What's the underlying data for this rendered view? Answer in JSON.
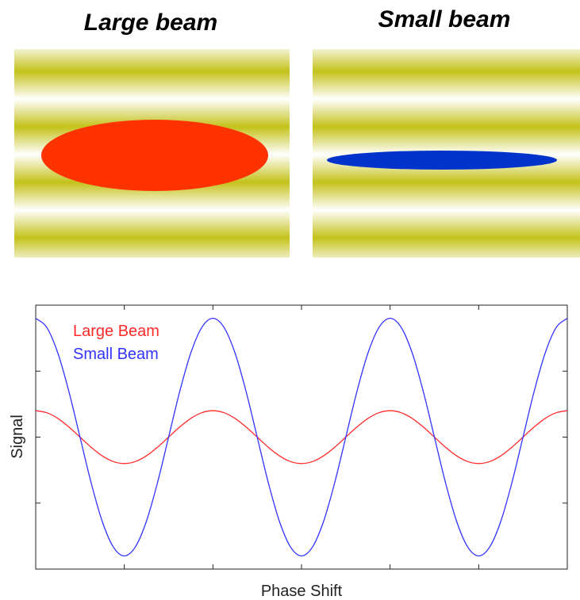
{
  "panels": [
    {
      "title": "Large beam"
    },
    {
      "title": "Small beam"
    }
  ],
  "chart_data": {
    "type": "line",
    "xlabel": "Phase Shift",
    "ylabel": "Signal",
    "x": [
      0,
      0.125,
      0.25,
      0.375,
      0.5,
      0.625,
      0.75,
      0.875,
      1,
      1.125,
      1.25,
      1.375,
      1.5,
      1.625,
      1.75,
      1.875,
      2,
      2.125,
      2.25,
      2.375,
      2.5,
      2.625,
      2.75,
      2.875,
      3,
      3.125,
      3.25,
      3.375,
      3.5,
      3.625,
      3.75,
      3.875,
      4,
      4.125,
      4.25,
      4.375,
      4.5,
      4.625,
      4.75,
      4.875,
      5,
      5.125,
      5.25,
      5.375,
      5.5,
      5.625,
      5.75,
      5.875,
      6
    ],
    "series": [
      {
        "name": "Large Beam",
        "color": "#ff2a2a",
        "values": [
          0.4,
          0.37,
          0.283,
          0.153,
          0,
          -0.153,
          -0.283,
          -0.37,
          -0.4,
          -0.37,
          -0.283,
          -0.153,
          0,
          0.153,
          0.283,
          0.37,
          0.4,
          0.37,
          0.283,
          0.153,
          0,
          -0.153,
          -0.283,
          -0.37,
          -0.4,
          -0.37,
          -0.283,
          -0.153,
          0,
          0.153,
          0.283,
          0.37,
          0.4,
          0.37,
          0.283,
          0.153,
          0,
          -0.153,
          -0.283,
          -0.37,
          -0.4,
          -0.37,
          -0.283,
          -0.153,
          0,
          0.153,
          0.283,
          0.37,
          0.4
        ]
      },
      {
        "name": "Small Beam",
        "color": "#3333ff",
        "values": [
          1.8,
          1.663,
          1.273,
          0.689,
          0,
          -0.689,
          -1.273,
          -1.663,
          -1.8,
          -1.663,
          -1.273,
          -0.689,
          0,
          0.689,
          1.273,
          1.663,
          1.8,
          1.663,
          1.273,
          0.689,
          0,
          -0.689,
          -1.273,
          -1.663,
          -1.8,
          -1.663,
          -1.273,
          -0.689,
          0,
          0.689,
          1.273,
          1.663,
          1.8,
          1.663,
          1.273,
          0.689,
          0,
          -0.689,
          -1.273,
          -1.663,
          -1.8,
          -1.663,
          -1.273,
          -0.689,
          0,
          0.689,
          1.273,
          1.663,
          1.8
        ]
      }
    ],
    "xlim": [
      0,
      6
    ],
    "ylim": [
      -2,
      2
    ],
    "xticks": [
      1,
      2,
      3,
      4,
      5
    ],
    "yticks": [
      -1,
      0,
      1
    ]
  }
}
